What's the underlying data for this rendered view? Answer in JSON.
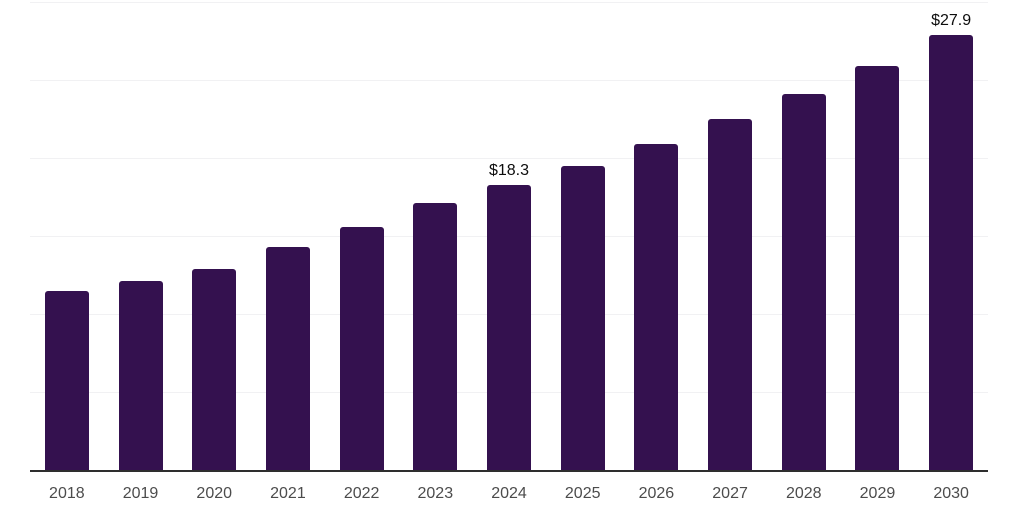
{
  "chart_data": {
    "type": "bar",
    "title": "",
    "xlabel": "",
    "ylabel": "",
    "categories": [
      "2018",
      "2019",
      "2020",
      "2021",
      "2022",
      "2023",
      "2024",
      "2025",
      "2026",
      "2027",
      "2028",
      "2029",
      "2030"
    ],
    "values": [
      11.5,
      12.1,
      12.9,
      14.3,
      15.6,
      17.1,
      18.3,
      19.5,
      20.9,
      22.5,
      24.1,
      25.9,
      27.9
    ],
    "value_labels": [
      null,
      null,
      null,
      null,
      null,
      null,
      "$18.3",
      null,
      null,
      null,
      null,
      null,
      "$27.9"
    ],
    "ylim": [
      0,
      30
    ],
    "gridline_values": [
      5,
      10,
      15,
      20,
      25,
      30
    ],
    "grid": true,
    "legend": false,
    "colors": {
      "bar": "#34114F",
      "gridline": "#f1f1f3",
      "axis_line": "#2e2e2e",
      "tick_label": "#4c4c4c",
      "value_label": "#0d0d0d",
      "background": "#ffffff"
    }
  }
}
